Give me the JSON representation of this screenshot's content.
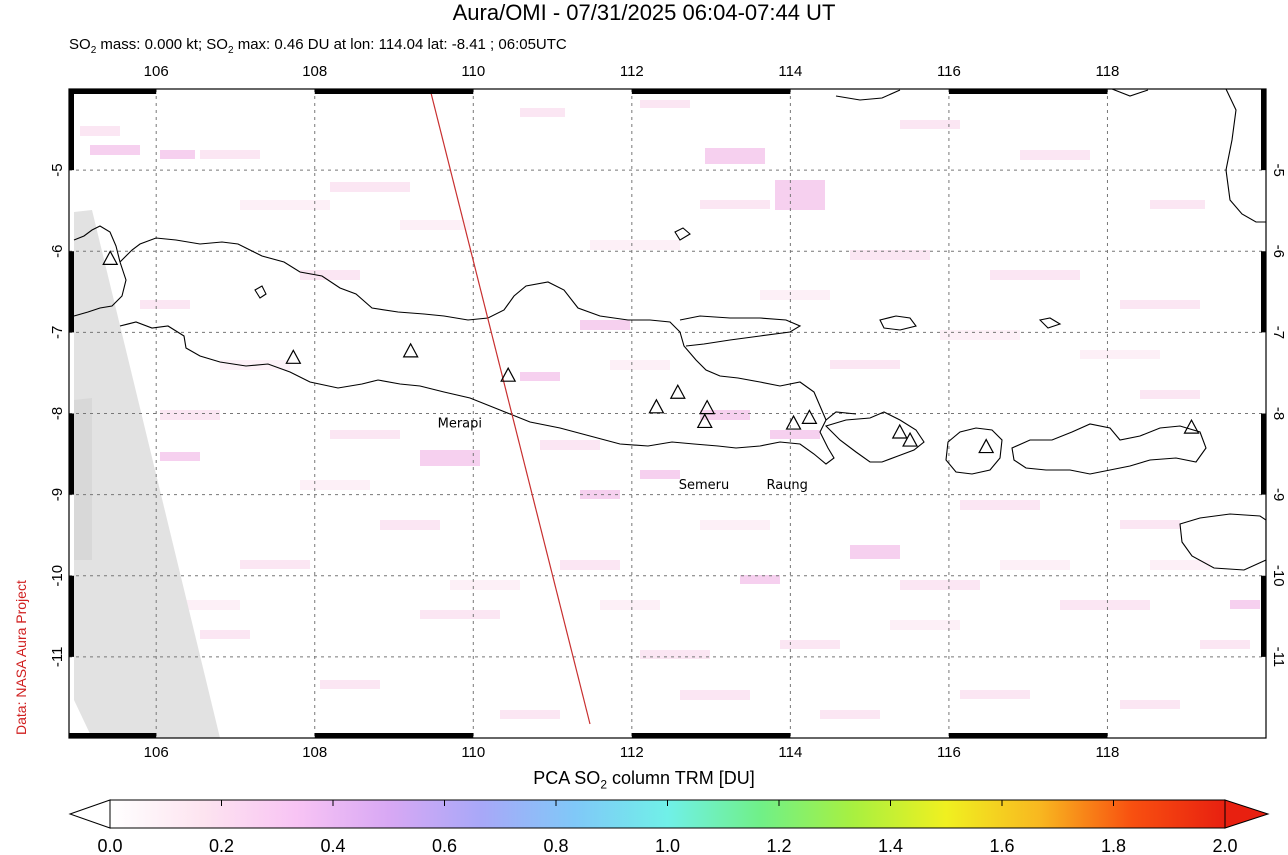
{
  "header": {
    "title": "Aura/OMI - 07/31/2025 06:04-07:44 UT",
    "subtitle_parts": [
      "SO",
      "2",
      " mass: 0.000 kt; SO",
      "2",
      " max: 0.46 DU at lon: 114.04 lat: -8.41 ; 06:05UTC"
    ]
  },
  "credit": "Data: NASA Aura Project",
  "map": {
    "lon_range": [
      104.9,
      120.0
    ],
    "lat_range": [
      -12.0,
      -4.0
    ],
    "lon_ticks": [
      "106",
      "108",
      "110",
      "112",
      "114",
      "116",
      "118"
    ],
    "lat_ticks": [
      "-5",
      "-6",
      "-7",
      "-8",
      "-9",
      "-10",
      "-11"
    ],
    "volcanoes": [
      {
        "lon": 107.73,
        "lat": -7.32
      },
      {
        "lon": 109.21,
        "lat": -7.24
      },
      {
        "lon": 110.44,
        "lat": -7.54
      },
      {
        "lon": 112.31,
        "lat": -7.93
      },
      {
        "lon": 112.58,
        "lat": -7.75
      },
      {
        "lon": 112.95,
        "lat": -7.94
      },
      {
        "lon": 112.92,
        "lat": -8.11
      },
      {
        "lon": 114.04,
        "lat": -8.13
      },
      {
        "lon": 114.24,
        "lat": -8.06
      },
      {
        "lon": 115.38,
        "lat": -8.24
      },
      {
        "lon": 115.51,
        "lat": -8.34
      },
      {
        "lon": 116.47,
        "lat": -8.42
      },
      {
        "lon": 119.06,
        "lat": -8.18
      },
      {
        "lon": 105.42,
        "lat": -6.1
      }
    ],
    "volcano_labels": [
      {
        "text": "Merapi",
        "lon": 109.83,
        "lat": -8.17
      },
      {
        "text": "Semeru",
        "lon": 112.91,
        "lat": -8.93
      },
      {
        "text": "Raung",
        "lon": 113.96,
        "lat": -8.93
      }
    ]
  },
  "colorbar": {
    "title_parts": [
      "PCA SO",
      "2",
      " column TRM [DU]"
    ],
    "ticks": [
      "0.0",
      "0.2",
      "0.4",
      "0.6",
      "0.8",
      "1.0",
      "1.2",
      "1.4",
      "1.6",
      "1.8",
      "2.0"
    ],
    "colors": [
      "#ffffff",
      "#fde4f0",
      "#f8c4f4",
      "#d8a8f4",
      "#a8a8f8",
      "#80c8f8",
      "#70f0e8",
      "#70f088",
      "#a8f040",
      "#f0f020",
      "#f8b820",
      "#f85010",
      "#e82010"
    ]
  }
}
